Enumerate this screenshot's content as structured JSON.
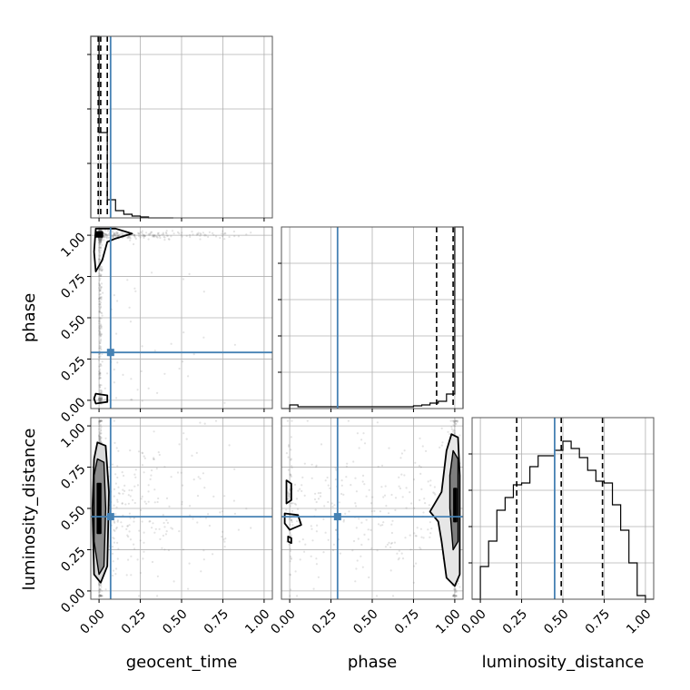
{
  "chart_data": {
    "type": "corner",
    "parameters": [
      "geocent_time",
      "phase",
      "luminosity_distance"
    ],
    "axis_labels": {
      "geocent_time": "geocent_time",
      "phase": "phase",
      "luminosity_distance": "luminosity_distance"
    },
    "range": [
      -0.05,
      1.05
    ],
    "ticks": [
      0.0,
      0.25,
      0.5,
      0.75,
      1.0
    ],
    "tick_labels": [
      "0.00",
      "0.25",
      "0.50",
      "0.75",
      "1.00"
    ],
    "grid": true,
    "truths": {
      "geocent_time": 0.07,
      "phase": 0.29,
      "luminosity_distance": 0.45
    },
    "colors": {
      "truth": "#4682b4",
      "hist": "#000000",
      "quantile": "#000000",
      "points": "#7f7f7f",
      "grid": "#b0b0b0"
    },
    "histograms": {
      "geocent_time": {
        "edges": [
          -0.05,
          0.0,
          0.05,
          0.1,
          0.15,
          0.2,
          0.25,
          0.3,
          0.35,
          0.4,
          0.45
        ],
        "counts": [
          1.0,
          0.47,
          0.1,
          0.04,
          0.02,
          0.01,
          0.005,
          0.0,
          0.0,
          0.0
        ],
        "quantiles": [
          -0.005,
          0.01,
          0.05
        ]
      },
      "phase": {
        "edges": [
          -0.05,
          0.0,
          0.05,
          0.1,
          0.15,
          0.2,
          0.25,
          0.3,
          0.35,
          0.4,
          0.45,
          0.5,
          0.55,
          0.6,
          0.65,
          0.7,
          0.75,
          0.8,
          0.85,
          0.9,
          0.95,
          1.0,
          1.05
        ],
        "counts": [
          0.0,
          0.02,
          0.01,
          0.01,
          0.01,
          0.01,
          0.01,
          0.01,
          0.01,
          0.01,
          0.01,
          0.01,
          0.01,
          0.01,
          0.01,
          0.01,
          0.015,
          0.02,
          0.03,
          0.04,
          0.08,
          1.0
        ],
        "quantiles": [
          0.89,
          0.99
        ]
      },
      "luminosity_distance": {
        "edges": [
          -0.05,
          0.0,
          0.05,
          0.1,
          0.15,
          0.2,
          0.25,
          0.3,
          0.35,
          0.4,
          0.45,
          0.5,
          0.55,
          0.6,
          0.65,
          0.7,
          0.75,
          0.8,
          0.85,
          0.9,
          0.95,
          1.0,
          1.05
        ],
        "counts": [
          0.0,
          0.18,
          0.32,
          0.49,
          0.56,
          0.63,
          0.64,
          0.73,
          0.79,
          0.79,
          0.82,
          0.87,
          0.83,
          0.78,
          0.71,
          0.65,
          0.64,
          0.52,
          0.38,
          0.2,
          0.02,
          0.0
        ],
        "quantiles": [
          0.22,
          0.49,
          0.74
        ]
      }
    }
  }
}
